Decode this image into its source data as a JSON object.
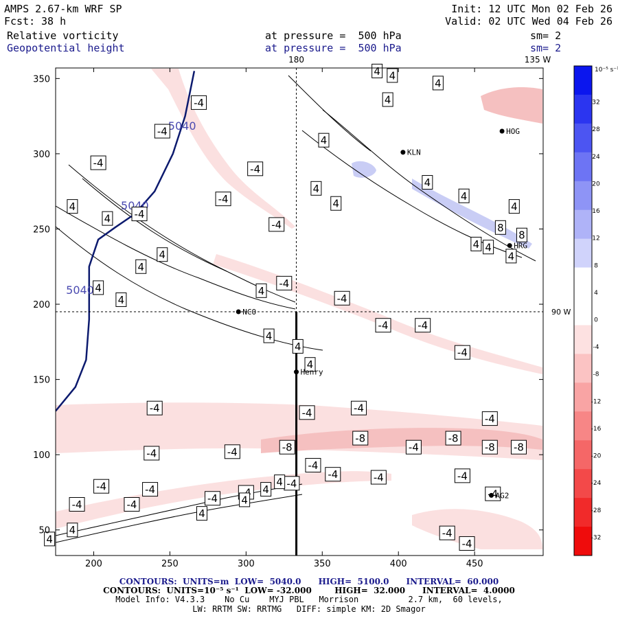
{
  "header": {
    "model": "AMPS 2.67-km WRF SP",
    "forecast_label": "Fcst:",
    "forecast_hours": "38 h",
    "init": "Init: 12 UTC Mon 02 Feb 26",
    "valid": "Valid: 02 UTC Wed 04 Feb 26",
    "field1": "Relative vorticity",
    "field1_level": "at pressure =  500 hPa",
    "field1_smooth": "sm= 2",
    "field2": "Geopotential height",
    "field2_level": "at pressure =  500 hPa",
    "field2_smooth": "sm= 2"
  },
  "colors": {
    "height_contour": "#0c1a6e",
    "vort_contour": "#000000",
    "neg_fill_light": "#fbe0e0",
    "neg_fill_mid": "#f5c0c0",
    "neg_fill_dark": "#ef9f9f",
    "pos_fill_light": "#c9cdf5",
    "pos_fill_mid": "#aab0ef"
  },
  "chart_data": {
    "type": "contour-map",
    "xlim": [
      175,
      495
    ],
    "ylim": [
      33,
      357
    ],
    "xticks": [
      "200",
      "250",
      "300",
      "350",
      "400",
      "450"
    ],
    "yticks": [
      "50",
      "100",
      "150",
      "200",
      "250",
      "300",
      "350"
    ],
    "xtick_values": [
      200,
      250,
      300,
      350,
      400,
      450
    ],
    "ytick_values": [
      50,
      100,
      150,
      200,
      250,
      300,
      350
    ],
    "meridian_labels": [
      "180",
      "135 W"
    ],
    "meridian_180_x": 333,
    "latlon_label": "90 W",
    "parallel_y": 195,
    "cross_section": {
      "x": 333,
      "y_from": 33,
      "y_to": 195
    },
    "height_contours": [
      {
        "label": "5040",
        "points": [
          [
            175,
            129
          ],
          [
            188,
            145
          ],
          [
            195,
            163
          ],
          [
            197,
            190
          ],
          [
            197,
            225
          ],
          [
            203,
            243
          ],
          [
            214,
            251
          ],
          [
            227,
            260
          ],
          [
            240,
            275
          ],
          [
            252,
            300
          ],
          [
            260,
            325
          ],
          [
            266,
            355
          ]
        ]
      }
    ],
    "height_labels": [
      {
        "text": "5040",
        "x": 258,
        "y": 318
      },
      {
        "text": "5040",
        "x": 227,
        "y": 265
      },
      {
        "text": "5040",
        "x": 191,
        "y": 209
      }
    ],
    "vort_labels": [
      {
        "text": "-4",
        "x": 269,
        "y": 334
      },
      {
        "text": "-4",
        "x": 245,
        "y": 315
      },
      {
        "text": "-4",
        "x": 203,
        "y": 294
      },
      {
        "text": "-4",
        "x": 230,
        "y": 260
      },
      {
        "text": "-4",
        "x": 306,
        "y": 290
      },
      {
        "text": "-4",
        "x": 285,
        "y": 270
      },
      {
        "text": "-4",
        "x": 320,
        "y": 253
      },
      {
        "text": "-4",
        "x": 325,
        "y": 214
      },
      {
        "text": "-4",
        "x": 363,
        "y": 204
      },
      {
        "text": "-4",
        "x": 390,
        "y": 186
      },
      {
        "text": "-4",
        "x": 416,
        "y": 186
      },
      {
        "text": "-4",
        "x": 442,
        "y": 168
      },
      {
        "text": "-4",
        "x": 240,
        "y": 131
      },
      {
        "text": "-4",
        "x": 340,
        "y": 128
      },
      {
        "text": "-4",
        "x": 374,
        "y": 131
      },
      {
        "text": "-4",
        "x": 460,
        "y": 124
      },
      {
        "text": "-8",
        "x": 327,
        "y": 105
      },
      {
        "text": "-8",
        "x": 375,
        "y": 111
      },
      {
        "text": "-8",
        "x": 436,
        "y": 111
      },
      {
        "text": "-4",
        "x": 410,
        "y": 105
      },
      {
        "text": "-8",
        "x": 460,
        "y": 105
      },
      {
        "text": "-8",
        "x": 479,
        "y": 105
      },
      {
        "text": "-4",
        "x": 238,
        "y": 101
      },
      {
        "text": "-4",
        "x": 291,
        "y": 102
      },
      {
        "text": "-4",
        "x": 357,
        "y": 87
      },
      {
        "text": "-4",
        "x": 344,
        "y": 93
      },
      {
        "text": "-4",
        "x": 387,
        "y": 85
      },
      {
        "text": "-4",
        "x": 442,
        "y": 86
      },
      {
        "text": "-4",
        "x": 330,
        "y": 81
      },
      {
        "text": "-4",
        "x": 205,
        "y": 79
      },
      {
        "text": "-4",
        "x": 237,
        "y": 77
      },
      {
        "text": "-4",
        "x": 278,
        "y": 71
      },
      {
        "text": "-4",
        "x": 300,
        "y": 75
      },
      {
        "text": "-4",
        "x": 189,
        "y": 67
      },
      {
        "text": "-4",
        "x": 225,
        "y": 67
      },
      {
        "text": "-4",
        "x": 462,
        "y": 74
      },
      {
        "text": "-4",
        "x": 432,
        "y": 48
      },
      {
        "text": "-4",
        "x": 445,
        "y": 41
      },
      {
        "text": "4",
        "x": 386,
        "y": 355
      },
      {
        "text": "4",
        "x": 396,
        "y": 352
      },
      {
        "text": "4",
        "x": 426,
        "y": 347
      },
      {
        "text": "4",
        "x": 393,
        "y": 336
      },
      {
        "text": "4",
        "x": 351,
        "y": 309
      },
      {
        "text": "4",
        "x": 346,
        "y": 277
      },
      {
        "text": "4",
        "x": 359,
        "y": 267
      },
      {
        "text": "4",
        "x": 419,
        "y": 281
      },
      {
        "text": "4",
        "x": 443,
        "y": 272
      },
      {
        "text": "4",
        "x": 476,
        "y": 265
      },
      {
        "text": "4",
        "x": 451,
        "y": 240
      },
      {
        "text": "4",
        "x": 459,
        "y": 238
      },
      {
        "text": "4",
        "x": 474,
        "y": 232
      },
      {
        "text": "8",
        "x": 467,
        "y": 251
      },
      {
        "text": "8",
        "x": 481,
        "y": 246
      },
      {
        "text": "4",
        "x": 186,
        "y": 265
      },
      {
        "text": "4",
        "x": 209,
        "y": 257
      },
      {
        "text": "4",
        "x": 245,
        "y": 233
      },
      {
        "text": "4",
        "x": 231,
        "y": 225
      },
      {
        "text": "4",
        "x": 203,
        "y": 211
      },
      {
        "text": "4",
        "x": 218,
        "y": 203
      },
      {
        "text": "4",
        "x": 310,
        "y": 209
      },
      {
        "text": "4",
        "x": 315,
        "y": 179
      },
      {
        "text": "4",
        "x": 334,
        "y": 172
      },
      {
        "text": "4",
        "x": 342,
        "y": 160
      },
      {
        "text": "4",
        "x": 322,
        "y": 82
      },
      {
        "text": "4",
        "x": 313,
        "y": 77
      },
      {
        "text": "4",
        "x": 271,
        "y": 61
      },
      {
        "text": "4",
        "x": 299,
        "y": 70
      },
      {
        "text": "4",
        "x": 186,
        "y": 50
      },
      {
        "text": "4",
        "x": 171,
        "y": 44
      }
    ],
    "stations": [
      {
        "name": "NCO",
        "x": 295,
        "y": 195
      },
      {
        "name": "Henry",
        "x": 333,
        "y": 155
      },
      {
        "name": "KLN",
        "x": 403,
        "y": 301
      },
      {
        "name": "HOG",
        "x": 468,
        "y": 315
      },
      {
        "name": "HRG",
        "x": 473,
        "y": 239
      },
      {
        "name": "AG2",
        "x": 461,
        "y": 73
      }
    ],
    "colorbar": {
      "unit_label": "10⁻⁵ s⁻¹",
      "values": [
        32,
        28,
        24,
        20,
        16,
        12,
        8,
        4,
        0,
        -4,
        -8,
        -12,
        -16,
        -20,
        -24,
        -28,
        -32
      ],
      "tick_labels": [
        "32",
        "28",
        "24",
        "20",
        "16",
        "12",
        "8",
        "4",
        "0",
        "-4",
        "-8",
        "-12",
        "-16",
        "-20",
        "-24",
        "-28",
        "-32"
      ],
      "colors": [
        "#0b16ee",
        "#2b35f0",
        "#4c55f2",
        "#6d74f4",
        "#8e94f6",
        "#afb3f8",
        "#d0d3fb",
        "#ffffff",
        "#ffffff",
        "#fde1e1",
        "#fbc3c3",
        "#f9a4a4",
        "#f78686",
        "#f56767",
        "#f34949",
        "#f12a2a",
        "#ef0c0c"
      ]
    }
  },
  "footer": {
    "line1_contours": "CONTOURS:  UNITS=m  LOW=  5040.0",
    "line1_high": "HIGH=  5100.0",
    "line1_interval": "INTERVAL=  60.000",
    "line2": "CONTOURS:  UNITS=10⁻⁵ s⁻¹  LOW= -32.000        HIGH=  32.000      INTERVAL=  4.0000",
    "line3": "Model Info: V4.3.3    No Cu    MYJ PBL   Morrison          2.7 km,  60 levels,",
    "line4": "LW: RRTM SW: RRTMG   DIFF: simple KM: 2D Smagor"
  }
}
